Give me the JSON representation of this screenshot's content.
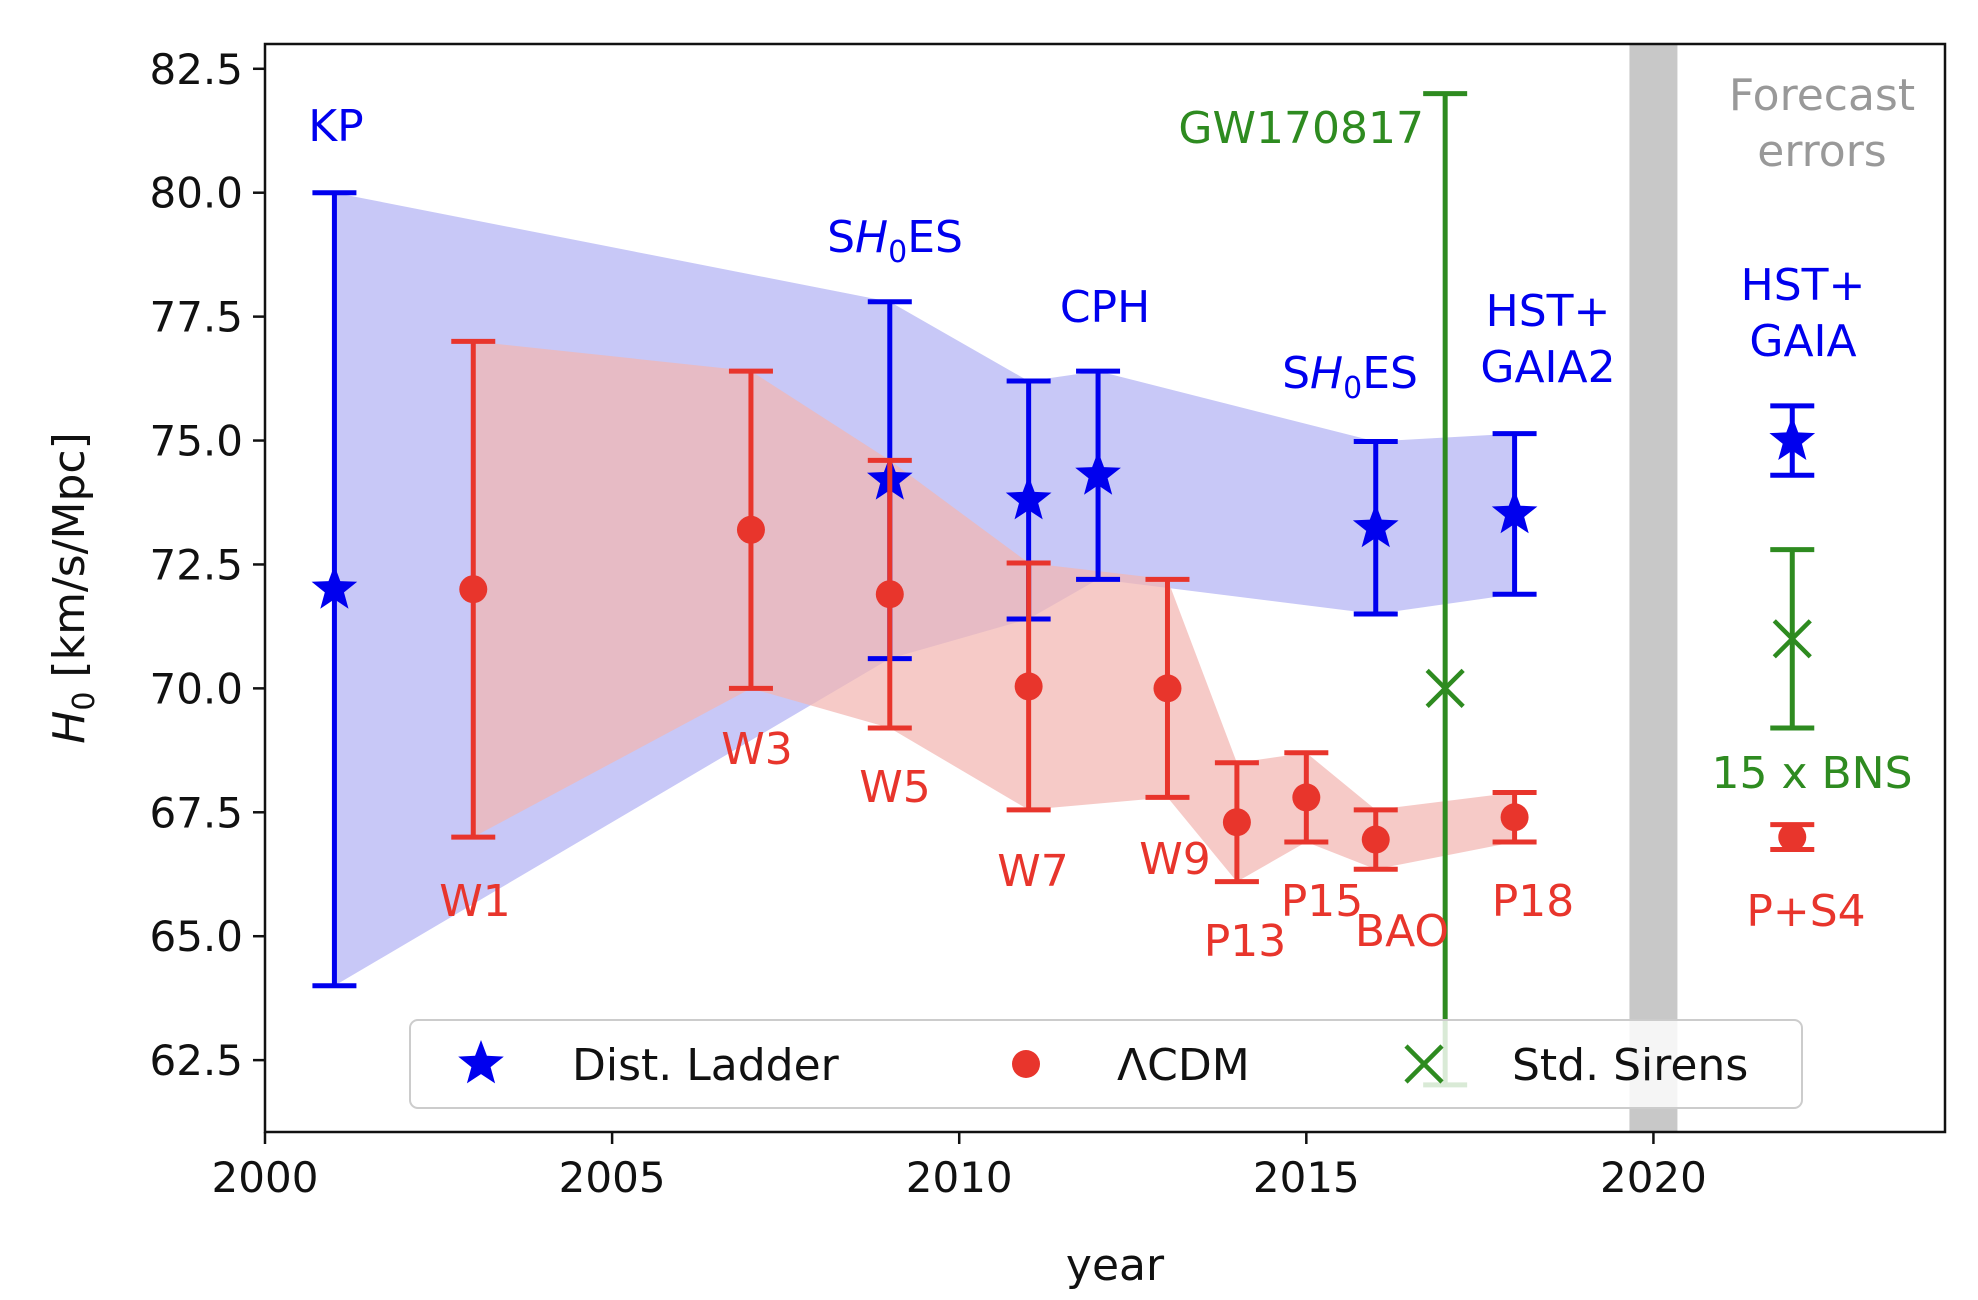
{
  "chart_data": {
    "type": "scatter",
    "title": "",
    "xlabel": "year",
    "ylabel_main": "H",
    "ylabel_sub": "0",
    "ylabel_rest": " [km/s/Mpc]",
    "xlim": [
      2000,
      2024.2
    ],
    "ylim": [
      61.05,
      83.0
    ],
    "xticks": [
      2000,
      2005,
      2010,
      2015,
      2020
    ],
    "yticks": [
      62.5,
      65.0,
      67.5,
      70.0,
      72.5,
      75.0,
      77.5,
      80.0,
      82.5
    ],
    "grid": false,
    "legend_position": "bottom-center",
    "colors": {
      "ladder": "#0000ee",
      "lcdm": "#e8352c",
      "sirens": "#2e8b20",
      "ladder_band": "#c8c8f7",
      "lcdm_band": "#f3b6b1",
      "overlap_band": "#cba5cc",
      "forecast_bar": "#c8c8c8",
      "forecast_text": "#999999"
    },
    "forecast_divider_x": 2020,
    "forecast_label_lines": [
      "Forecast",
      "errors"
    ],
    "legend": [
      {
        "marker": "star",
        "label": "Dist. Ladder"
      },
      {
        "marker": "circle",
        "label": "ΛCDM"
      },
      {
        "marker": "x",
        "label": "Std. Sirens"
      }
    ],
    "series": [
      {
        "name": "Dist. Ladder",
        "marker": "star",
        "points": [
          {
            "x": 2001,
            "y": 72.0,
            "low": 64.0,
            "high": 80.0,
            "label_lines": [
              "KP"
            ],
            "sub": ""
          },
          {
            "x": 2009,
            "y": 74.2,
            "low": 70.6,
            "high": 77.8,
            "label_lines": [
              "SH0ES"
            ],
            "sub": "0"
          },
          {
            "x": 2011,
            "y": 73.8,
            "low": 71.4,
            "high": 76.2,
            "label_lines": [
              ""
            ],
            "sub": ""
          },
          {
            "x": 2012,
            "y": 74.3,
            "low": 72.2,
            "high": 76.4,
            "label_lines": [
              "CPH"
            ],
            "sub": ""
          },
          {
            "x": 2016,
            "y": 73.24,
            "low": 71.5,
            "high": 74.98,
            "label_lines": [
              "SH0ES"
            ],
            "sub": "0"
          },
          {
            "x": 2018,
            "y": 73.52,
            "low": 71.9,
            "high": 75.14,
            "label_lines": [
              "HST+",
              "GAIA2"
            ],
            "sub": ""
          },
          {
            "x": 2022,
            "y": 75.0,
            "low": 74.3,
            "high": 75.7,
            "label_lines": [
              "HST+",
              "GAIA"
            ],
            "sub": ""
          }
        ]
      },
      {
        "name": "ΛCDM",
        "marker": "circle",
        "points": [
          {
            "x": 2003,
            "y": 72.0,
            "low": 67.0,
            "high": 77.0,
            "label_lines": [
              "W1"
            ]
          },
          {
            "x": 2007,
            "y": 73.2,
            "low": 70.0,
            "high": 76.4,
            "label_lines": [
              "W3"
            ]
          },
          {
            "x": 2009,
            "y": 71.9,
            "low": 69.2,
            "high": 74.6,
            "label_lines": [
              "W5"
            ]
          },
          {
            "x": 2011,
            "y": 70.04,
            "low": 67.55,
            "high": 72.53,
            "label_lines": [
              "W7"
            ]
          },
          {
            "x": 2013,
            "y": 70.0,
            "low": 67.8,
            "high": 72.2,
            "label_lines": [
              "W9"
            ]
          },
          {
            "x": 2014,
            "y": 67.3,
            "low": 66.1,
            "high": 68.5,
            "label_lines": [
              "P13"
            ]
          },
          {
            "x": 2015,
            "y": 67.8,
            "low": 66.9,
            "high": 68.7,
            "label_lines": [
              "P15"
            ]
          },
          {
            "x": 2016,
            "y": 66.95,
            "low": 66.35,
            "high": 67.55,
            "label_lines": [
              "BAO"
            ]
          },
          {
            "x": 2018,
            "y": 67.4,
            "low": 66.9,
            "high": 67.9,
            "label_lines": [
              "P18"
            ]
          },
          {
            "x": 2022,
            "y": 67.0,
            "low": 66.75,
            "high": 67.25,
            "label_lines": [
              "P+S4"
            ]
          }
        ]
      },
      {
        "name": "Std. Sirens",
        "marker": "x",
        "points": [
          {
            "x": 2017,
            "y": 70.0,
            "low": 62.0,
            "high": 82.0,
            "label_lines": [
              "GW170817"
            ]
          },
          {
            "x": 2022,
            "y": 71.0,
            "low": 69.2,
            "high": 72.8,
            "label_lines": [
              "15 x BNS"
            ]
          }
        ]
      }
    ],
    "bands": {
      "ladder_years": [
        2001,
        2009,
        2011,
        2012,
        2016,
        2018
      ],
      "lcdm_years": [
        2003,
        2007,
        2009,
        2011,
        2013,
        2014,
        2015,
        2016,
        2018
      ]
    }
  }
}
